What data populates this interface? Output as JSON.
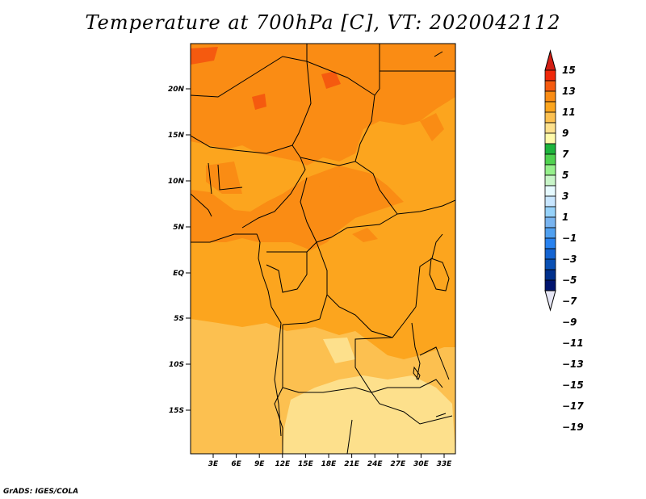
{
  "title": "Temperature at 700hPa [C], VT: 2020042112",
  "credit": "GrADS: IGES/COLA",
  "map": {
    "lat_labels": [
      "20N",
      "15N",
      "10N",
      "5N",
      "EQ",
      "5S",
      "10S",
      "15S"
    ],
    "lon_labels": [
      "3E",
      "6E",
      "9E",
      "12E",
      "15E",
      "18E",
      "21E",
      "24E",
      "27E",
      "30E",
      "33E"
    ]
  },
  "colorbar": {
    "labels": [
      "15",
      "13",
      "11",
      "9",
      "7",
      "5",
      "3",
      "1",
      "−1",
      "−3",
      "−5",
      "−7",
      "−9",
      "−11",
      "−13",
      "−15",
      "−17",
      "−19"
    ],
    "colors": [
      "#f0280a",
      "#f55a0f",
      "#fa8c14",
      "#fca51e",
      "#fcc050",
      "#fde08c",
      "#fffaaa",
      "#1eb43c",
      "#50d250",
      "#96f08c",
      "#c8f5c8",
      "#e6faff",
      "#c8e6ff",
      "#96d2fa",
      "#78b4f0",
      "#50a0f0",
      "#2882f0",
      "#1464d2",
      "#0a50b4",
      "#00308c",
      "#00146e"
    ],
    "top_cap_color": "#d21e14",
    "bottom_cap_color": "#e6e6f5"
  },
  "shading_colors": {
    "c9_11": "#fca51e",
    "c11_13": "#fa8c14",
    "c13_15": "#f55a0f",
    "c7_9": "#fcc050",
    "c5_7": "#fde08c"
  }
}
